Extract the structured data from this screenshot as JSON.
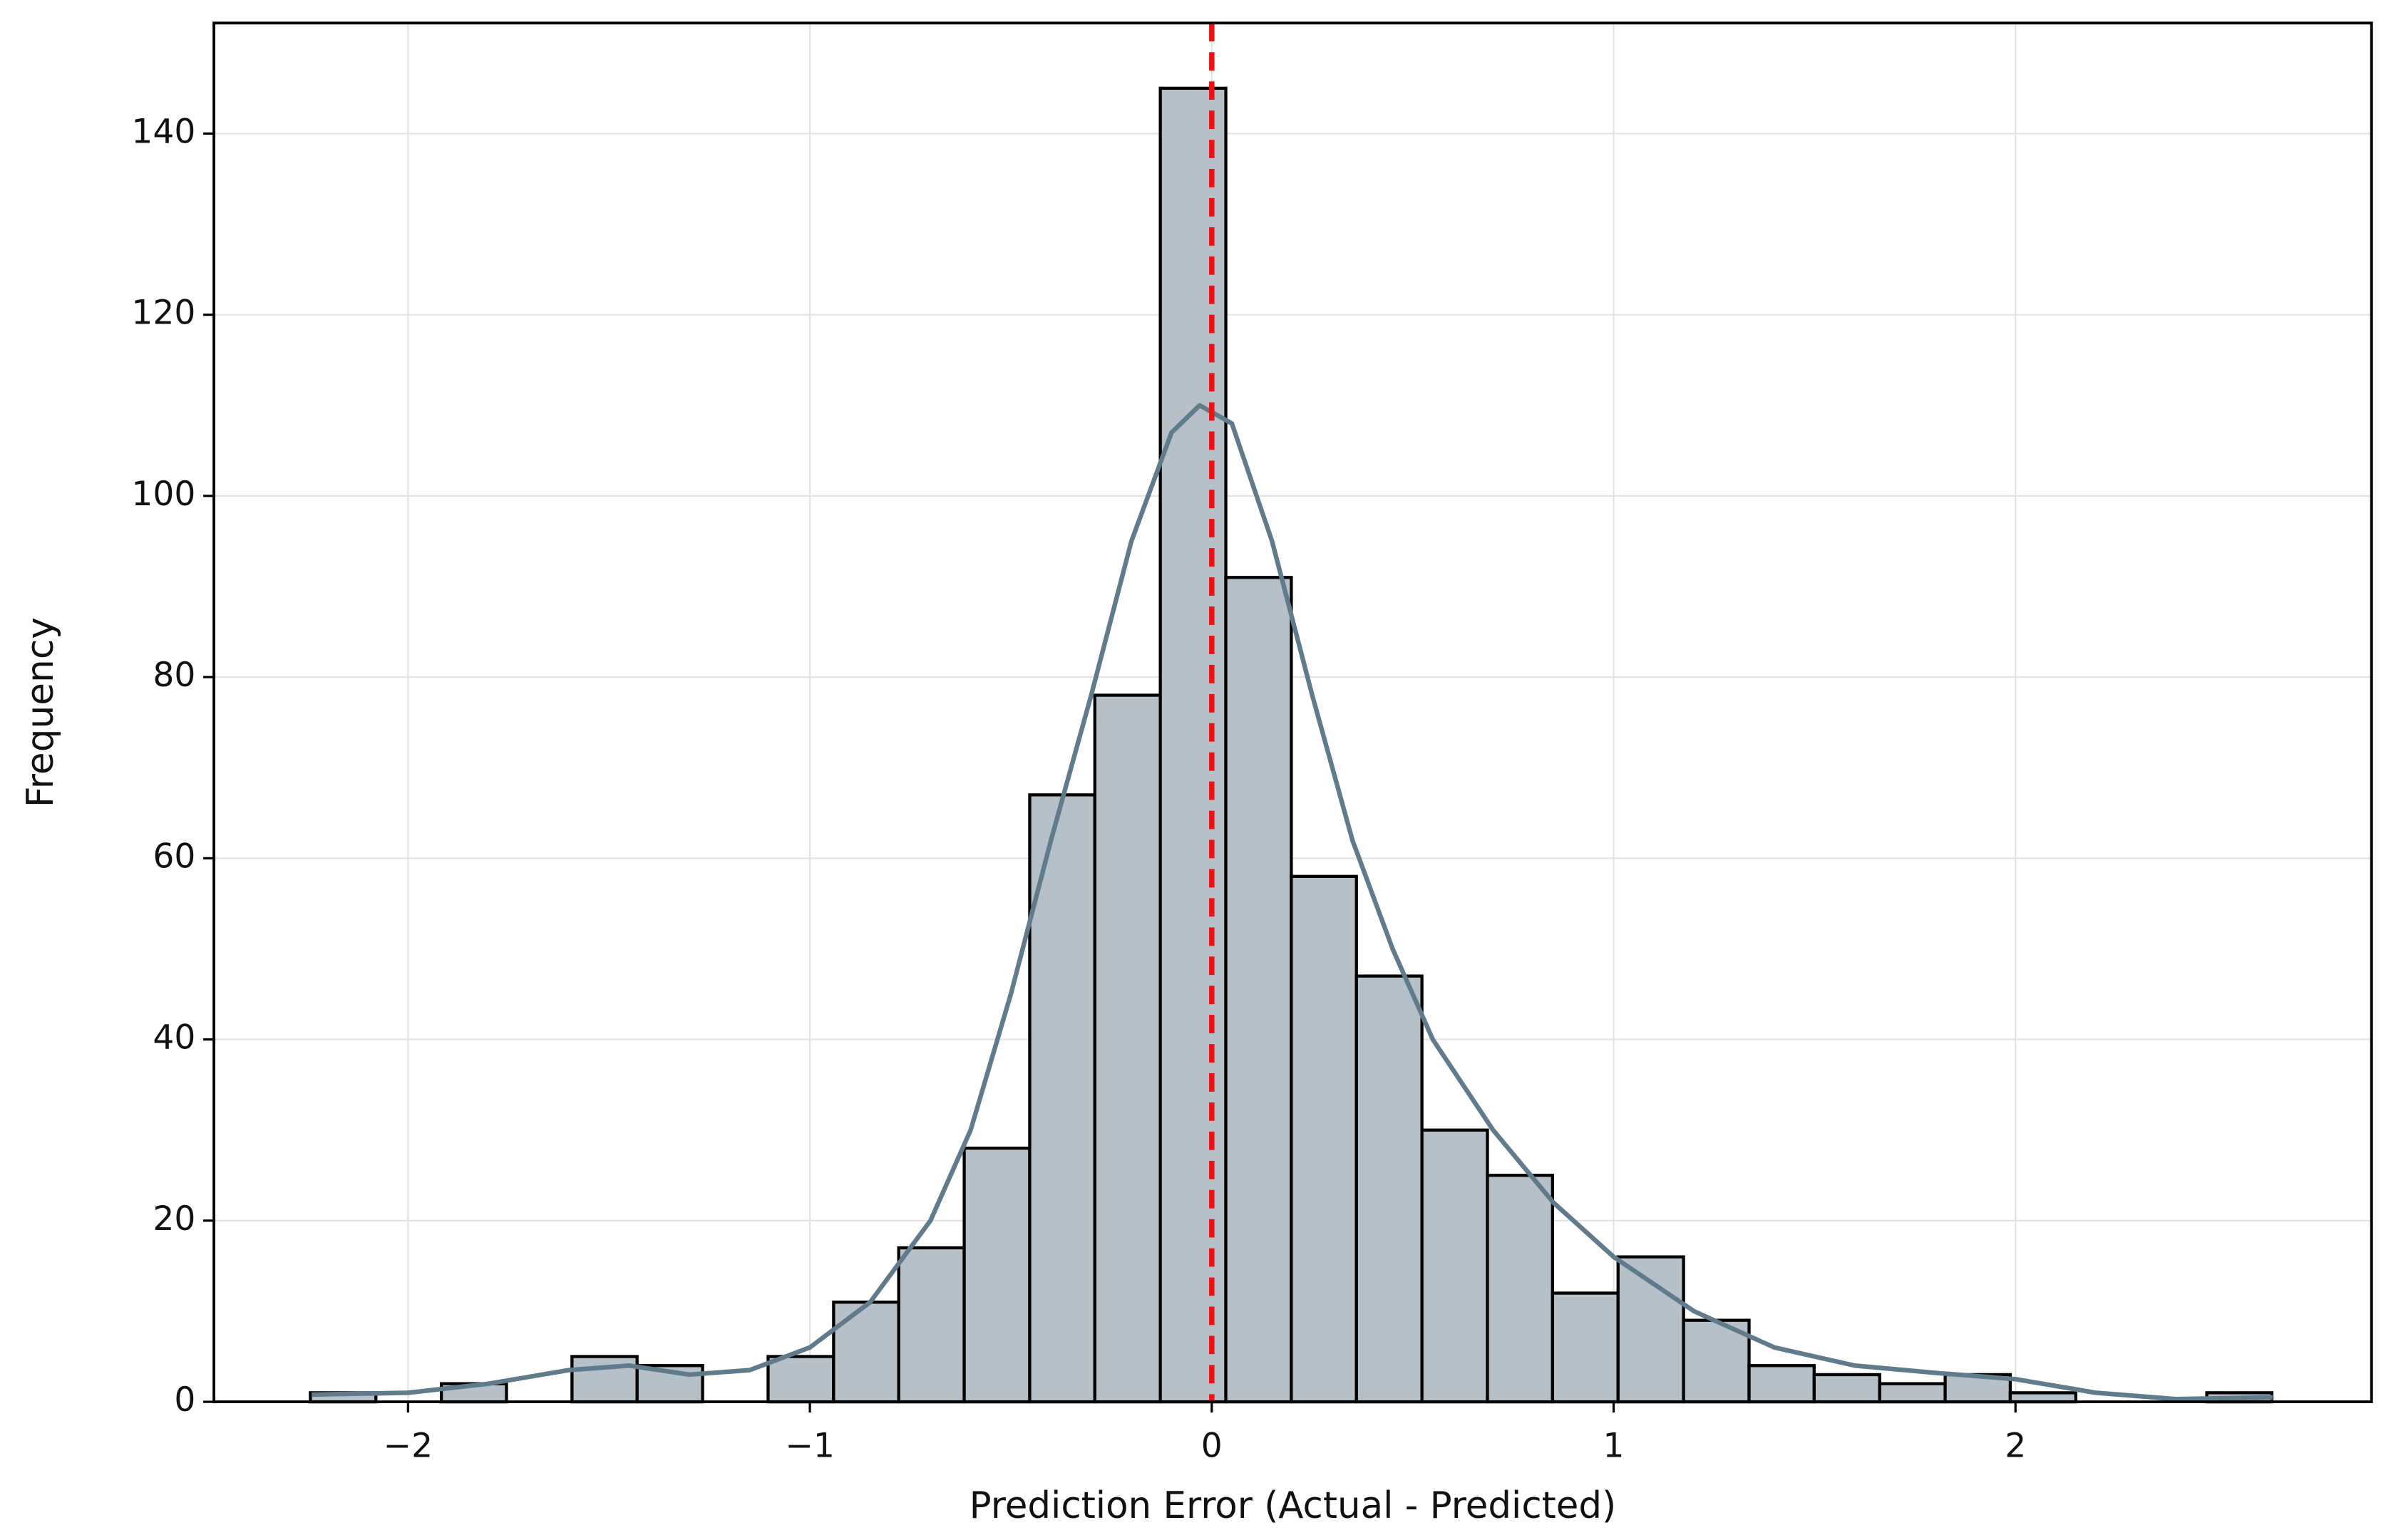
{
  "chart_data": {
    "type": "histogram",
    "xlabel": "Prediction Error (Actual - Predicted)",
    "ylabel": "Frequency",
    "bins": [
      -2.243,
      -2.08,
      -1.917,
      -1.755,
      -1.592,
      -1.43,
      -1.267,
      -1.104,
      -0.941,
      -0.779,
      -0.616,
      -0.453,
      -0.291,
      -0.128,
      0.035,
      0.198,
      0.36,
      0.523,
      0.686,
      0.848,
      1.011,
      1.174,
      1.337,
      1.499,
      1.662,
      1.825,
      1.987,
      2.15,
      2.313,
      2.476,
      2.638
    ],
    "counts": [
      1,
      0,
      2,
      0,
      5,
      4,
      0,
      5,
      11,
      17,
      28,
      67,
      78,
      145,
      91,
      58,
      47,
      30,
      25,
      12,
      16,
      9,
      4,
      3,
      2,
      3,
      1,
      0,
      0,
      1
    ],
    "color": "#b6c0c8",
    "edgecolor": "#000000",
    "kde": {
      "color": "#607b8c",
      "x": [
        -2.24,
        -2.0,
        -1.8,
        -1.6,
        -1.45,
        -1.3,
        -1.15,
        -1.0,
        -0.85,
        -0.7,
        -0.6,
        -0.5,
        -0.4,
        -0.3,
        -0.2,
        -0.1,
        -0.03,
        0.05,
        0.15,
        0.25,
        0.35,
        0.45,
        0.55,
        0.7,
        0.85,
        1.0,
        1.2,
        1.4,
        1.6,
        1.8,
        2.0,
        2.2,
        2.4,
        2.64
      ],
      "values": [
        0.8,
        1,
        2,
        3.5,
        4,
        3,
        3.5,
        6,
        11,
        20,
        30,
        45,
        62,
        78,
        95,
        107,
        110,
        108,
        95,
        78,
        62,
        50,
        40,
        30,
        22,
        16,
        10,
        6,
        4,
        3.2,
        2.5,
        1,
        0.3,
        0.5
      ]
    },
    "vline": {
      "value": 0,
      "color": "#ee1111"
    },
    "xlim": [
      -2.483,
      2.886
    ],
    "ylim": [
      0,
      152.2
    ],
    "xticks": [
      {
        "value": -2,
        "label": "−2"
      },
      {
        "value": -1,
        "label": "−1"
      },
      0,
      1,
      2
    ],
    "yticks": [
      0,
      20,
      40,
      60,
      80,
      100,
      120,
      140
    ],
    "grid": true
  }
}
